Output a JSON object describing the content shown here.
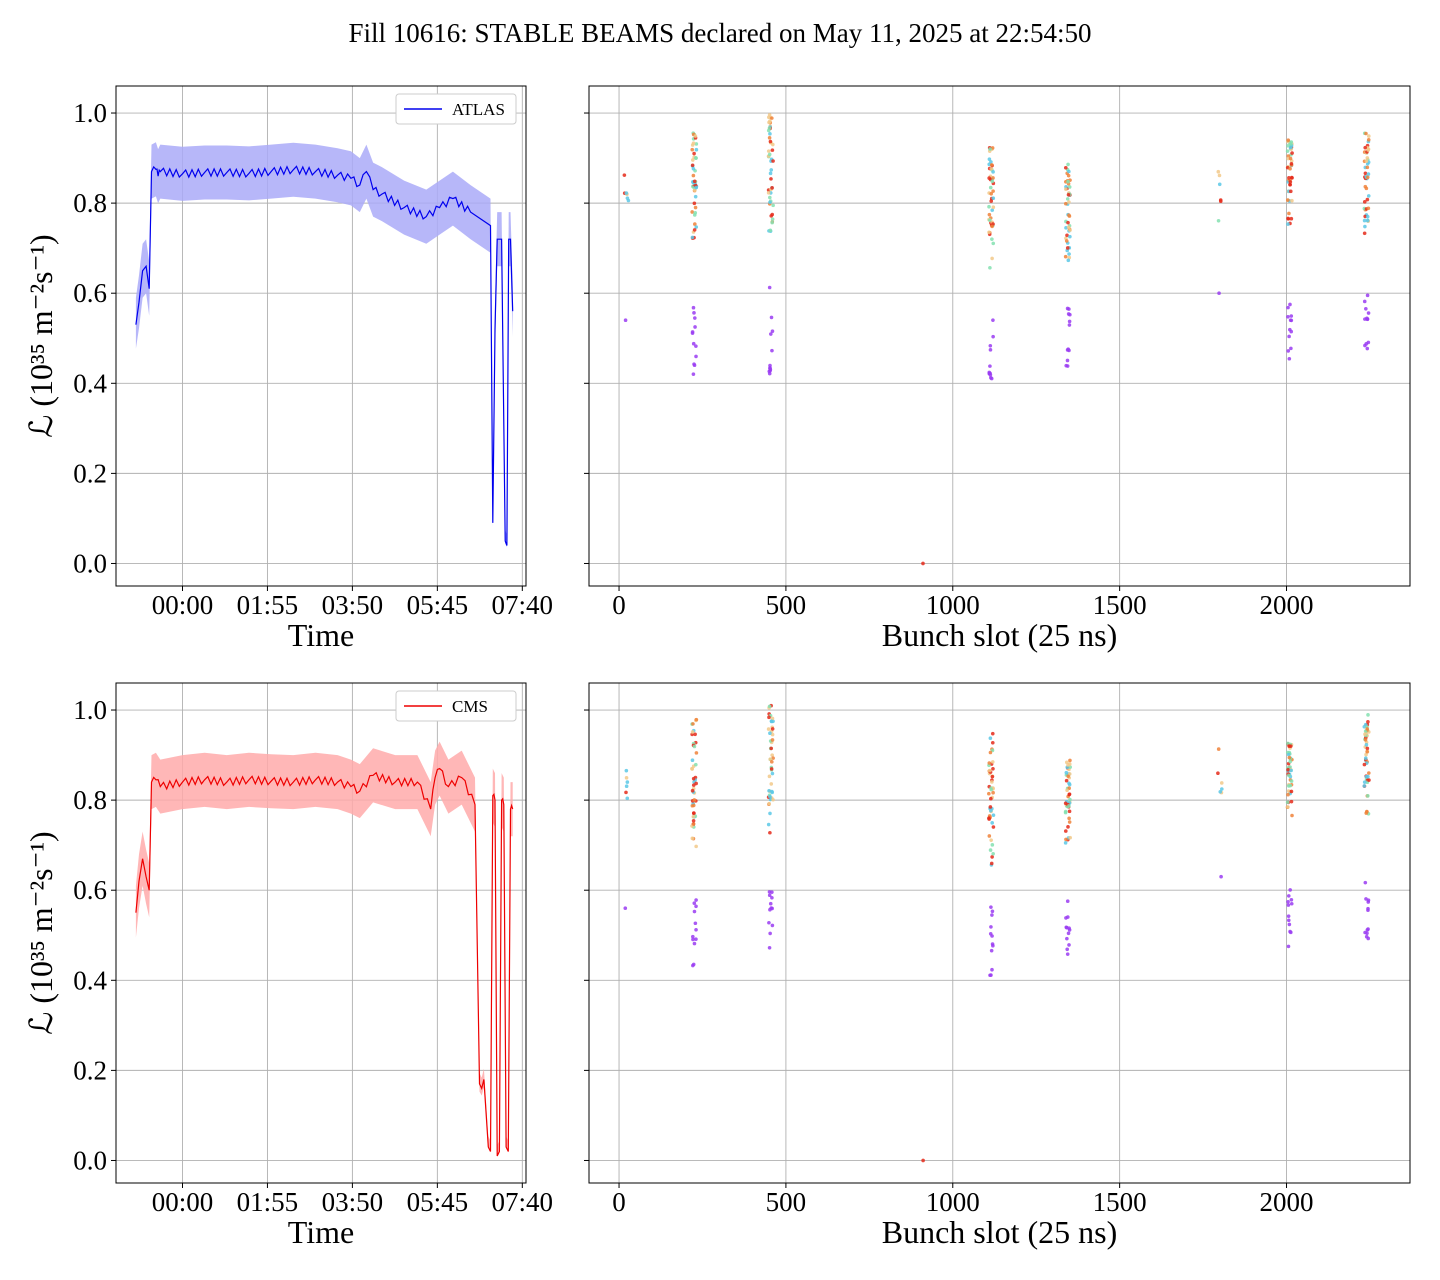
{
  "title": "Fill 10616: STABLE BEAMS declared on May 11, 2025 at 22:54:50",
  "colors": {
    "atlas_line": "#0000ee",
    "atlas_band": "#aaaaf8",
    "cms_line": "#ee0000",
    "cms_band": "#ffaaaa",
    "grid": "#b0b0b0",
    "bunch_palette": [
      "#9a3cf2",
      "#5bc8e6",
      "#84e0b0",
      "#f2c98a",
      "#f0833a",
      "#e52a1a"
    ]
  },
  "chart_data": [
    {
      "id": "atlas-time",
      "type": "line",
      "series_name": "ATLAS",
      "xlabel": "Time",
      "ylabel": "ℒ (10³⁵ m⁻²s⁻¹)",
      "xticks": [
        "00:00",
        "01:55",
        "03:50",
        "05:45",
        "07:40"
      ],
      "xticks_hours": [
        0,
        1.9167,
        3.8333,
        5.75,
        7.6667
      ],
      "xlim_hours": [
        -1.5,
        7.75
      ],
      "ylim": [
        -0.05,
        1.06
      ],
      "yticks": [
        "0.0",
        "0.2",
        "0.4",
        "0.6",
        "0.8",
        "1.0"
      ],
      "legend": "upper right",
      "grid": true,
      "x_hours": [
        -1.05,
        -0.98,
        -0.9,
        -0.82,
        -0.75,
        -0.7,
        -0.6,
        -0.55,
        -0.5,
        0,
        0.5,
        1,
        1.5,
        2,
        2.5,
        3,
        3.5,
        3.8,
        4.0,
        4.15,
        4.3,
        4.5,
        5.0,
        5.5,
        5.8,
        6.1,
        6.5,
        6.95,
        7.0,
        7.05,
        7.1,
        7.2,
        7.28,
        7.32,
        7.36,
        7.4,
        7.45
      ],
      "y": [
        0.53,
        0.58,
        0.65,
        0.66,
        0.61,
        0.87,
        0.875,
        0.86,
        0.87,
        0.865,
        0.868,
        0.868,
        0.866,
        0.87,
        0.874,
        0.87,
        0.862,
        0.855,
        0.84,
        0.87,
        0.83,
        0.82,
        0.79,
        0.77,
        0.79,
        0.81,
        0.78,
        0.75,
        0.09,
        0.52,
        0.72,
        0.72,
        0.05,
        0.04,
        0.72,
        0.72,
        0.56
      ],
      "band_halfwidth": 0.06
    },
    {
      "id": "atlas-bunch",
      "type": "scatter",
      "xlabel": "Bunch slot (25 ns)",
      "xticks": [
        0,
        500,
        1000,
        1500,
        2000
      ],
      "xlim": [
        -90,
        2370
      ],
      "ylim": [
        -0.05,
        1.06
      ],
      "yticks": [
        0.0,
        0.2,
        0.4,
        0.6,
        0.8,
        1.0
      ],
      "grid": true,
      "groups": [
        {
          "x": 22,
          "high": [
            0.77,
            0.87
          ],
          "low": [
            0.54,
            0.54
          ]
        },
        {
          "x": 225,
          "high": [
            0.7,
            0.96
          ],
          "low": [
            0.42,
            0.57
          ]
        },
        {
          "x": 455,
          "high": [
            0.71,
            1.0
          ],
          "low": [
            0.42,
            0.62
          ]
        },
        {
          "x": 912,
          "high": [
            0.0,
            0.0
          ],
          "low": [
            0.0,
            0.0
          ]
        },
        {
          "x": 1115,
          "high": [
            0.64,
            0.93
          ],
          "low": [
            0.4,
            0.59
          ]
        },
        {
          "x": 1345,
          "high": [
            0.66,
            0.89
          ],
          "low": [
            0.42,
            0.57
          ]
        },
        {
          "x": 1800,
          "high": [
            0.74,
            0.92
          ],
          "low": [
            0.6,
            0.6
          ]
        },
        {
          "x": 2010,
          "high": [
            0.74,
            0.94
          ],
          "low": [
            0.45,
            0.58
          ]
        },
        {
          "x": 2240,
          "high": [
            0.73,
            0.96
          ],
          "low": [
            0.46,
            0.6
          ]
        }
      ]
    },
    {
      "id": "cms-time",
      "type": "line",
      "series_name": "CMS",
      "xlabel": "Time",
      "ylabel": "ℒ (10³⁵ m⁻²s⁻¹)",
      "xticks": [
        "00:00",
        "01:55",
        "03:50",
        "05:45",
        "07:40"
      ],
      "xticks_hours": [
        0,
        1.9167,
        3.8333,
        5.75,
        7.6667
      ],
      "xlim_hours": [
        -1.5,
        7.75
      ],
      "ylim": [
        -0.05,
        1.06
      ],
      "yticks": [
        "0.0",
        "0.2",
        "0.4",
        "0.6",
        "0.8",
        "1.0"
      ],
      "legend": "upper right",
      "grid": true,
      "x_hours": [
        -1.05,
        -0.98,
        -0.9,
        -0.82,
        -0.75,
        -0.7,
        -0.6,
        -0.5,
        0,
        0.5,
        1,
        1.5,
        2,
        2.5,
        3,
        3.5,
        3.8,
        4.0,
        4.3,
        4.8,
        5.3,
        5.6,
        5.7,
        5.8,
        6.0,
        6.3,
        6.6,
        6.7,
        6.75,
        6.8,
        6.9,
        6.95,
        7.0,
        7.05,
        7.1,
        7.15,
        7.2,
        7.25,
        7.3,
        7.35,
        7.4,
        7.45
      ],
      "y": [
        0.55,
        0.62,
        0.67,
        0.63,
        0.6,
        0.84,
        0.845,
        0.83,
        0.84,
        0.845,
        0.84,
        0.845,
        0.842,
        0.84,
        0.845,
        0.84,
        0.83,
        0.82,
        0.855,
        0.84,
        0.84,
        0.78,
        0.85,
        0.87,
        0.83,
        0.85,
        0.79,
        0.17,
        0.16,
        0.18,
        0.03,
        0.02,
        0.81,
        0.8,
        0.01,
        0.02,
        0.8,
        0.79,
        0.03,
        0.02,
        0.78,
        0.78
      ],
      "band_halfwidth": 0.06
    },
    {
      "id": "cms-bunch",
      "type": "scatter",
      "xlabel": "Bunch slot (25 ns)",
      "xticks": [
        0,
        500,
        1000,
        1500,
        2000
      ],
      "xlim": [
        -90,
        2370
      ],
      "ylim": [
        -0.05,
        1.06
      ],
      "yticks": [
        0.0,
        0.2,
        0.4,
        0.6,
        0.8,
        1.0
      ],
      "grid": true,
      "groups": [
        {
          "x": 22,
          "high": [
            0.79,
            0.9
          ],
          "low": [
            0.56,
            0.56
          ]
        },
        {
          "x": 225,
          "high": [
            0.69,
            0.98
          ],
          "low": [
            0.43,
            0.59
          ]
        },
        {
          "x": 455,
          "high": [
            0.7,
            1.01
          ],
          "low": [
            0.44,
            0.6
          ]
        },
        {
          "x": 912,
          "high": [
            0.0,
            0.0
          ],
          "low": [
            0.0,
            0.0
          ]
        },
        {
          "x": 1115,
          "high": [
            0.64,
            0.95
          ],
          "low": [
            0.41,
            0.6
          ]
        },
        {
          "x": 1345,
          "high": [
            0.67,
            0.89
          ],
          "low": [
            0.43,
            0.59
          ]
        },
        {
          "x": 1800,
          "high": [
            0.76,
            0.96
          ],
          "low": [
            0.63,
            0.63
          ]
        },
        {
          "x": 2010,
          "high": [
            0.74,
            0.94
          ],
          "low": [
            0.47,
            0.61
          ]
        },
        {
          "x": 2240,
          "high": [
            0.76,
            0.99
          ],
          "low": [
            0.49,
            0.62
          ]
        }
      ]
    }
  ]
}
